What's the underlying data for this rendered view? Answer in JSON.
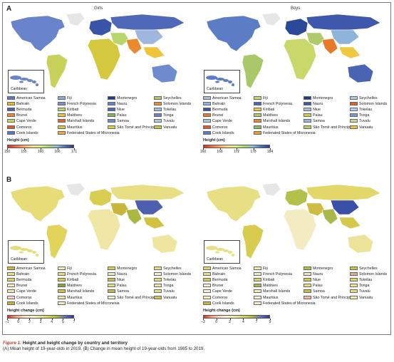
{
  "panels": {
    "a": {
      "letter": "A"
    },
    "b": {
      "letter": "B"
    }
  },
  "maps": {
    "girls_title": "Girls",
    "boys_title": "Boys",
    "inset_label": "Caribbean"
  },
  "legend_a_girls": {
    "items": [
      {
        "label": "American Samoa",
        "color": "#5a78c2"
      },
      {
        "label": "Bahrain",
        "color": "#e6b62d"
      },
      {
        "label": "Bermuda",
        "color": "#4c5fb0"
      },
      {
        "label": "Brunei",
        "color": "#e98a2e"
      },
      {
        "label": "Cape Verde",
        "color": "#c6d85c"
      },
      {
        "label": "Comoros",
        "color": "#e4572e"
      },
      {
        "label": "Cook Islands",
        "color": "#5978c5"
      },
      {
        "label": "Fiji",
        "color": "#8fa9d9"
      },
      {
        "label": "French Polynesia",
        "color": "#7c8ed0"
      },
      {
        "label": "Kiribati",
        "color": "#b8d56a"
      },
      {
        "label": "Maldives",
        "color": "#f0c43a"
      },
      {
        "label": "Marshall Islands",
        "color": "#e3672a"
      },
      {
        "label": "Mauritius",
        "color": "#d4c93e"
      },
      {
        "label": "Federated States of Micronesia",
        "color": "#f2a83a"
      },
      {
        "label": "Montenegro",
        "color": "#1f3c8c"
      },
      {
        "label": "Nauru",
        "color": "#6a7fc8"
      },
      {
        "label": "Niue",
        "color": "#4f68b8"
      },
      {
        "label": "Palau",
        "color": "#7fb25b"
      },
      {
        "label": "Samoa",
        "color": "#6e8ccd"
      },
      {
        "label": "São Tomé and Príncipe",
        "color": "#d5d43e"
      },
      {
        "label": "Seychelles",
        "color": "#b6c86a"
      },
      {
        "label": "Solomon Islands",
        "color": "#e98f30"
      },
      {
        "label": "Tokelau",
        "color": "#a3bde0"
      },
      {
        "label": "Tonga",
        "color": "#6a84cc"
      },
      {
        "label": "Tuvalu",
        "color": "#b2cde2"
      },
      {
        "label": "Vanuatu",
        "color": "#c7c64a"
      }
    ]
  },
  "legend_a_boys": {
    "items": [
      {
        "label": "American Samoa",
        "color": "#a4c2e0"
      },
      {
        "label": "Bahrain",
        "color": "#8fb4d9"
      },
      {
        "label": "Bermuda",
        "color": "#3b52a8"
      },
      {
        "label": "Brunei",
        "color": "#e67a2a"
      },
      {
        "label": "Cape Verde",
        "color": "#a6cbe0"
      },
      {
        "label": "Comoros",
        "color": "#e4572e"
      },
      {
        "label": "Cook Islands",
        "color": "#5d7cc6"
      },
      {
        "label": "Fiji",
        "color": "#c9d86a"
      },
      {
        "label": "French Polynesia",
        "color": "#4a63b3"
      },
      {
        "label": "Kiribati",
        "color": "#efc93f"
      },
      {
        "label": "Maldives",
        "color": "#b0c96a"
      },
      {
        "label": "Marshall Islands",
        "color": "#e88a2c"
      },
      {
        "label": "Mauritius",
        "color": "#8fb86a"
      },
      {
        "label": "Federated States of Micronesia",
        "color": "#e9a030"
      },
      {
        "label": "Montenegro",
        "color": "#1e3a8a"
      },
      {
        "label": "Nauru",
        "color": "#3f58ab"
      },
      {
        "label": "Niue",
        "color": "#a6c3e1"
      },
      {
        "label": "Palau",
        "color": "#d1d24a"
      },
      {
        "label": "Samoa",
        "color": "#8fb9da"
      },
      {
        "label": "São Tomé and Príncipe",
        "color": "#b9cf5f"
      },
      {
        "label": "Seychelles",
        "color": "#a7d0e3"
      },
      {
        "label": "Solomon Islands",
        "color": "#e6612a"
      },
      {
        "label": "Tokelau",
        "color": "#b5d1e6"
      },
      {
        "label": "Tonga",
        "color": "#7f98d2"
      },
      {
        "label": "Tuvalu",
        "color": "#c7da9a"
      },
      {
        "label": "Vanuatu",
        "color": "#ecc53c"
      }
    ]
  },
  "legend_b_girls": {
    "items": [
      {
        "label": "American Samoa",
        "color": "#c9b83a"
      },
      {
        "label": "Bahrain",
        "color": "#e8df8a"
      },
      {
        "label": "Bermuda",
        "color": "#e0d45a"
      },
      {
        "label": "Brunei",
        "color": "#f3eebf"
      },
      {
        "label": "Cape Verde",
        "color": "#f0e7a6"
      },
      {
        "label": "Comoros",
        "color": "#f4d7c8"
      },
      {
        "label": "Cook Islands",
        "color": "#c5b236"
      },
      {
        "label": "Fiji",
        "color": "#f2ecb8"
      },
      {
        "label": "French Polynesia",
        "color": "#e8dd80"
      },
      {
        "label": "Kiribati",
        "color": "#d8ca4a"
      },
      {
        "label": "Maldives",
        "color": "#8c9f3a"
      },
      {
        "label": "Marshall Islands",
        "color": "#d3c144"
      },
      {
        "label": "Mauritius",
        "color": "#eee6a6"
      },
      {
        "label": "Federated States of Micronesia",
        "color": "#f4efc6"
      },
      {
        "label": "Montenegro",
        "color": "#d9cd52"
      },
      {
        "label": "Nauru",
        "color": "#f3e6c2"
      },
      {
        "label": "Niue",
        "color": "#cfbf40"
      },
      {
        "label": "Palau",
        "color": "#e6dc78"
      },
      {
        "label": "Samoa",
        "color": "#c8b73a"
      },
      {
        "label": "São Tomé and Príncipe",
        "color": "#f3efc9"
      },
      {
        "label": "Seychelles",
        "color": "#e6dc84"
      },
      {
        "label": "Solomon Islands",
        "color": "#f5f0d2"
      },
      {
        "label": "Tokelau",
        "color": "#e4da76"
      },
      {
        "label": "Tonga",
        "color": "#eee5a0"
      },
      {
        "label": "Tuvalu",
        "color": "#e8de84"
      },
      {
        "label": "Vanuatu",
        "color": "#d3c446"
      }
    ]
  },
  "legend_b_boys": {
    "items": [
      {
        "label": "American Samoa",
        "color": "#e2d768"
      },
      {
        "label": "Bahrain",
        "color": "#e8df84"
      },
      {
        "label": "Bermuda",
        "color": "#d8cc50"
      },
      {
        "label": "Brunei",
        "color": "#f4f0cf"
      },
      {
        "label": "Cape Verde",
        "color": "#f5f2d8"
      },
      {
        "label": "Comoros",
        "color": "#f3ecc2"
      },
      {
        "label": "Cook Islands",
        "color": "#c8b73a"
      },
      {
        "label": "Fiji",
        "color": "#f0e9b6"
      },
      {
        "label": "French Polynesia",
        "color": "#f4eec6"
      },
      {
        "label": "Kiribati",
        "color": "#e0d36a"
      },
      {
        "label": "Maldives",
        "color": "#a8b84a"
      },
      {
        "label": "Marshall Islands",
        "color": "#f2ecc0"
      },
      {
        "label": "Mauritius",
        "color": "#f5f0d2"
      },
      {
        "label": "Federated States of Micronesia",
        "color": "#f4efc8"
      },
      {
        "label": "Montenegro",
        "color": "#b3c04a"
      },
      {
        "label": "Nauru",
        "color": "#f3e2cc"
      },
      {
        "label": "Niue",
        "color": "#d6c84c"
      },
      {
        "label": "Palau",
        "color": "#e9df80"
      },
      {
        "label": "Samoa",
        "color": "#cdbd42"
      },
      {
        "label": "São Tomé and Príncipe",
        "color": "#f1b8a8"
      },
      {
        "label": "Seychelles",
        "color": "#c9c244"
      },
      {
        "label": "Solomon Islands",
        "color": "#e4a79a"
      },
      {
        "label": "Tokelau",
        "color": "#e0d56a"
      },
      {
        "label": "Tonga",
        "color": "#ece29a"
      },
      {
        "label": "Tuvalu",
        "color": "#e6dc7e"
      },
      {
        "label": "Vanuatu",
        "color": "#f1eab4"
      }
    ]
  },
  "scales": {
    "a_girls": {
      "title": "Height (cm)",
      "ticks": [
        "150",
        "155",
        "160",
        "166",
        "171"
      ],
      "gradient": [
        "#d7301f",
        "#f46d43",
        "#fdae61",
        "#fee08b",
        "#d9ef8b",
        "#a6d96a",
        "#91bfdb",
        "#4575b4",
        "#313695"
      ]
    },
    "a_boys": {
      "title": "Height (cm)",
      "ticks": [
        "160",
        "166",
        "172",
        "178",
        "184"
      ],
      "gradient": [
        "#d7301f",
        "#f46d43",
        "#fdae61",
        "#fee08b",
        "#d9ef8b",
        "#a6d96a",
        "#91bfdb",
        "#4575b4",
        "#313695"
      ]
    },
    "b_girls": {
      "title": "Height change (cm)",
      "ticks": [
        "–1",
        "0",
        "2",
        "3",
        "4",
        "5",
        "7"
      ],
      "gradient": [
        "#d7301f",
        "#f4a582",
        "#fddbc7",
        "#fbf5d0",
        "#eee59a",
        "#d9cf52",
        "#a9b840",
        "#5a73c0",
        "#313695"
      ]
    },
    "b_boys": {
      "title": "Height change (cm)",
      "ticks": [
        "–3",
        "0",
        "2",
        "4",
        "7",
        "9"
      ],
      "gradient": [
        "#d7301f",
        "#f4a582",
        "#fddbc7",
        "#fbf5d0",
        "#eee59a",
        "#d9cf52",
        "#a9b840",
        "#5a73c0",
        "#313695"
      ]
    }
  },
  "map_colors": {
    "a_girls": {
      "north_america": "#6a84cc",
      "greenland": "#e6e6e6",
      "south_america": "#c8d25a",
      "europe": "#3a55a8",
      "russia": "#4f68b8",
      "africa": "#d4c93e",
      "middle_east": "#b8d56a",
      "south_asia": "#e98a2e",
      "east_asia": "#9fb6dd",
      "se_asia": "#f0c43a",
      "australia": "#6e8ccd"
    },
    "a_boys": {
      "north_america": "#5d7cc6",
      "greenland": "#e6e6e6",
      "south_america": "#a8c86a",
      "europe": "#2c4898",
      "russia": "#3f58ab",
      "africa": "#c9d86a",
      "middle_east": "#b0c96a",
      "south_asia": "#e67a2a",
      "east_asia": "#8fb4d9",
      "se_asia": "#efc93f",
      "australia": "#4a63b3"
    },
    "b_girls": {
      "north_america": "#e6dc78",
      "greenland": "#e6e6e6",
      "south_america": "#e0d45a",
      "europe": "#d9cd52",
      "russia": "#e8df84",
      "africa": "#f0e7a6",
      "middle_east": "#c8b73a",
      "south_asia": "#a9b840",
      "east_asia": "#4f5fb0",
      "se_asia": "#d3c144",
      "australia": "#eee5a0"
    },
    "b_boys": {
      "north_america": "#e8df84",
      "greenland": "#e6e6e6",
      "south_america": "#d8cc50",
      "europe": "#b3c04a",
      "russia": "#e2d768",
      "africa": "#f3ecc2",
      "middle_east": "#cdbd42",
      "south_asia": "#a8b84a",
      "east_asia": "#3a4fa8",
      "se_asia": "#d6c84c",
      "australia": "#ece29a"
    }
  },
  "caption": {
    "fig_label": "Figure 1:",
    "title": " Height and height change by country and territory",
    "text": "(A) Mean height of 19-year-olds in 2019. (B) Change in mean height of 19-year-olds from 1985 to 2019."
  }
}
